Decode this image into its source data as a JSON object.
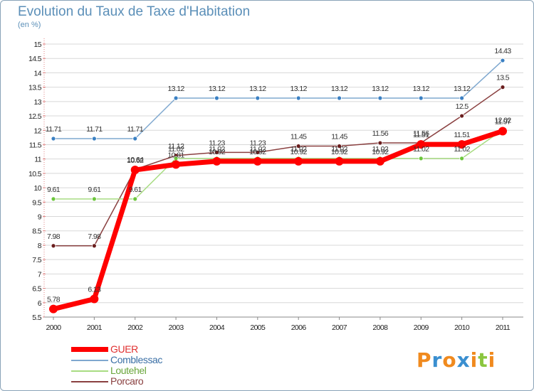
{
  "header": {
    "title": "Evolution du Taux de Taxe d'Habitation",
    "unit": "(en %)"
  },
  "logo": {
    "letters": [
      "P",
      "r",
      "o",
      "x",
      "i",
      "t",
      "i"
    ],
    "colors": [
      "#f08a1e",
      "#3a8fd0",
      "#f08a1e",
      "#3a8fd0",
      "#f08a1e",
      "#8bc63f",
      "#f08a1e"
    ]
  },
  "chart_data": {
    "type": "line",
    "title": "Evolution du Taux de Taxe d'Habitation",
    "ylabel": "(en %)",
    "xlabel": "",
    "x": [
      "2000",
      "2001",
      "2002",
      "2003",
      "2004",
      "2005",
      "2006",
      "2007",
      "2008",
      "2009",
      "2010",
      "2011"
    ],
    "ylim": [
      5.5,
      15
    ],
    "yticks": [
      "5.5",
      "6",
      "6.5",
      "7",
      "7.5",
      "8",
      "8.5",
      "9",
      "9.5",
      "10",
      "10.5",
      "11",
      "11.5",
      "12",
      "12.5",
      "13",
      "13.5",
      "14",
      "14.5",
      "15"
    ],
    "legend_position": "bottom-left",
    "series": [
      {
        "name": "GUER",
        "color": "#ff0000",
        "marker_color": "#ff0000",
        "values": [
          5.78,
          6.13,
          10.62,
          10.81,
          10.92,
          10.92,
          10.92,
          10.92,
          10.92,
          11.51,
          11.51,
          11.97
        ],
        "labels": [
          "5.78",
          "6.13",
          "10.62",
          "10.81",
          "10.92",
          "10.92",
          "10.92",
          "10.92",
          "10.92",
          "11.51",
          "11.51",
          "11.97"
        ]
      },
      {
        "name": "Comblessac",
        "color": "#7fa8cf",
        "marker_color": "#3a80c3",
        "values": [
          11.71,
          11.71,
          11.71,
          13.12,
          13.12,
          13.12,
          13.12,
          13.12,
          13.12,
          13.12,
          13.12,
          14.43
        ],
        "labels": [
          "11.71",
          "11.71",
          "11.71",
          "13.12",
          "13.12",
          "13.12",
          "13.12",
          "13.12",
          "13.12",
          "13.12",
          "13.12",
          "14.43"
        ]
      },
      {
        "name": "Loutehel",
        "color": "#a8dc82",
        "marker_color": "#6cc63c",
        "values": [
          9.61,
          9.61,
          9.61,
          11.02,
          11.02,
          11.02,
          11.02,
          11.02,
          11.02,
          11.02,
          11.02,
          12.02
        ],
        "labels": [
          "9.61",
          "9.61",
          "9.61",
          "11.02",
          "11.02",
          "11.02",
          "11.02",
          "11.02",
          "11.02",
          "11.02",
          "11.02",
          "12.02"
        ]
      },
      {
        "name": "Porcaro",
        "color": "#8a4040",
        "marker_color": "#6a1e1e",
        "values": [
          7.98,
          7.98,
          10.64,
          11.12,
          11.23,
          11.23,
          11.45,
          11.45,
          11.56,
          11.56,
          12.5,
          13.5
        ],
        "labels": [
          "7.98",
          "7.98",
          "10.64",
          "11.12",
          "11.23",
          "11.23",
          "11.45",
          "11.45",
          "11.56",
          "11.56",
          "12.5",
          "13.5"
        ]
      }
    ]
  }
}
